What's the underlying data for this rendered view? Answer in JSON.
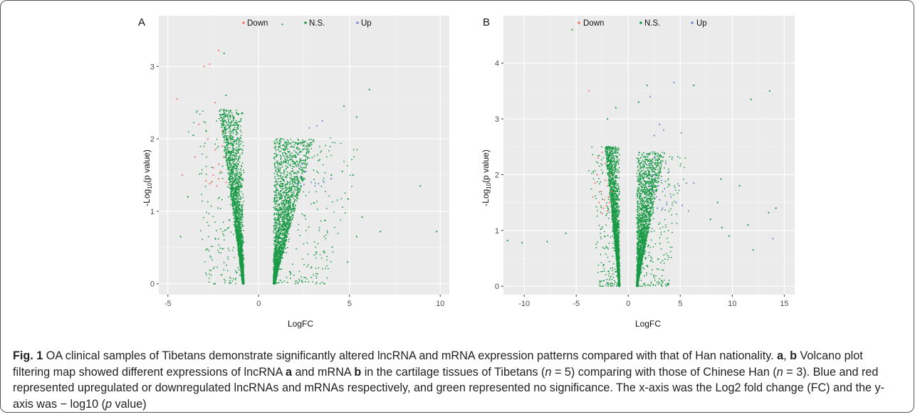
{
  "figure": {
    "caption": {
      "fig_label": "Fig. 1",
      "sentence1": "OA clinical samples of Tibetans demonstrate significantly altered lncRNA and mRNA expression patterns compared with that of Han nationality.",
      "ref_a": "a",
      "ref_sep": ",",
      "ref_b": "b",
      "part1": "Volcano plot filtering map showed different expressions of lncRNA",
      "part2": "and mRNA",
      "part3": "in the cartilage tissues of Tibetans (",
      "n1": "n",
      "part4": "= 5) comparing with those of Chinese Han (",
      "n2": "n",
      "part5": "= 3). Blue and red represented upregulated or downregulated lncRNAs and mRNAs respectively, and green represented no significance. The x-axis was the Log2 fold change (FC) and the y-axis was − log10 (",
      "p": "p",
      "part6": "value)"
    }
  },
  "chart_data": [
    {
      "panel": "A",
      "type": "scatter",
      "xlabel": "LogFC",
      "ylabel_main": "-Log",
      "ylabel_sub": "10",
      "ylabel_rest": "(p value)",
      "xlim": [
        -5.5,
        10.5
      ],
      "ylim": [
        -0.15,
        3.7
      ],
      "xticks": [
        -5,
        0,
        5,
        10
      ],
      "yticks": [
        0,
        1,
        2,
        3
      ],
      "grid": true,
      "legend_position": "top-center",
      "colors": {
        "Down": "#f8766d",
        "N.S.": "#1a9a46",
        "Up": "#7b8bd0"
      },
      "legend": [
        "Down",
        "N.S.",
        "Up"
      ],
      "series": [
        {
          "name": "Down",
          "points": [
            [
              -4.5,
              2.55
            ],
            [
              -3,
              3.0
            ],
            [
              -2.7,
              3.03
            ],
            [
              -2.2,
              3.22
            ],
            [
              -2.4,
              2.5
            ],
            [
              -3.3,
              2.2
            ],
            [
              -4.2,
              1.5
            ],
            [
              -2.8,
              2.0
            ],
            [
              -2.5,
              1.6
            ],
            [
              -2.2,
              1.45
            ],
            [
              -2.6,
              1.4
            ],
            [
              -2.3,
              1.35
            ],
            [
              -2.7,
              1.38
            ],
            [
              -2.1,
              1.55
            ],
            [
              -1.9,
              1.75
            ],
            [
              -2.4,
              1.85
            ],
            [
              -3.5,
              1.75
            ],
            [
              -2.0,
              1.9
            ],
            [
              -2.9,
              1.42
            ],
            [
              -2.2,
              1.65
            ],
            [
              -1.8,
              1.4
            ],
            [
              -2.5,
              1.5
            ],
            [
              -2.0,
              2.1
            ]
          ]
        },
        {
          "name": "N.S.",
          "points": [
            [
              -1.9,
              3.18
            ],
            [
              -1.8,
              2.6
            ],
            [
              1.3,
              3.58
            ],
            [
              4.7,
              2.45
            ],
            [
              5.4,
              2.3
            ],
            [
              6.1,
              2.68
            ],
            [
              -3.6,
              2.05
            ],
            [
              -3.9,
              1.2
            ],
            [
              -4.3,
              0.65
            ],
            [
              1.2,
              2.0
            ],
            [
              1.5,
              1.95
            ],
            [
              3.3,
              1.7
            ],
            [
              4.6,
              1.55
            ],
            [
              5.2,
              1.5
            ],
            [
              6.7,
              0.72
            ],
            [
              5.7,
              0.92
            ],
            [
              4.0,
              1.5
            ],
            [
              8.9,
              1.35
            ],
            [
              9.8,
              0.72
            ],
            [
              4.9,
              0.3
            ],
            [
              2.0,
              1.4
            ],
            [
              5.4,
              0.65
            ]
          ]
        },
        {
          "name": "Up",
          "points": [
            [
              2.2,
              1.78
            ],
            [
              2.4,
              1.65
            ],
            [
              2.6,
              1.55
            ],
            [
              2.3,
              1.48
            ],
            [
              2.9,
              1.4
            ],
            [
              3.1,
              1.35
            ],
            [
              3.3,
              1.38
            ],
            [
              2.5,
              1.37
            ],
            [
              3.6,
              1.4
            ],
            [
              3.5,
              2.25
            ],
            [
              3.2,
              2.18
            ],
            [
              2.8,
              2.15
            ],
            [
              2.2,
              1.62
            ],
            [
              4.0,
              1.45
            ],
            [
              2.1,
              1.38
            ]
          ]
        }
      ],
      "ns_cloud": [
        {
          "side": "left",
          "x_edge": -0.8,
          "y_max": 2.4
        },
        {
          "side": "right",
          "x_edge": 0.8,
          "y_max": 2.0
        }
      ]
    },
    {
      "panel": "B",
      "type": "scatter",
      "xlabel": "LogFC",
      "ylabel_main": "-Log",
      "ylabel_sub": "10",
      "ylabel_rest": "(p value)",
      "xlim": [
        -12,
        16
      ],
      "ylim": [
        -0.15,
        4.85
      ],
      "xticks": [
        -10,
        -5,
        0,
        5,
        10,
        15
      ],
      "yticks": [
        0,
        1,
        2,
        3,
        4
      ],
      "grid": true,
      "legend_position": "top-center",
      "colors": {
        "Down": "#f8766d",
        "N.S.": "#1a9a46",
        "Up": "#7b8bd0"
      },
      "legend": [
        "Down",
        "N.S.",
        "Up"
      ],
      "series": [
        {
          "name": "Down",
          "points": [
            [
              -3.8,
              3.5
            ],
            [
              -2.5,
              2.4
            ],
            [
              -2.2,
              2.2
            ],
            [
              -3.0,
              2.0
            ],
            [
              -2.0,
              1.8
            ],
            [
              -2.6,
              1.7
            ],
            [
              -1.9,
              1.6
            ],
            [
              -2.3,
              1.55
            ],
            [
              -2.8,
              1.5
            ],
            [
              -1.8,
              1.5
            ],
            [
              -2.1,
              1.45
            ],
            [
              -2.4,
              1.4
            ],
            [
              -3.2,
              1.85
            ],
            [
              -1.7,
              2.0
            ],
            [
              -2.9,
              2.3
            ],
            [
              -2.0,
              1.35
            ],
            [
              -2.5,
              1.3
            ],
            [
              -1.6,
              1.7
            ],
            [
              -3.4,
              1.6
            ],
            [
              -2.2,
              1.9
            ]
          ]
        },
        {
          "name": "N.S.",
          "points": [
            [
              -5.4,
              4.6
            ],
            [
              -1.2,
              3.2
            ],
            [
              -2.0,
              3.0
            ],
            [
              1.0,
              3.3
            ],
            [
              1.8,
              3.6
            ],
            [
              6.3,
              3.6
            ],
            [
              13.6,
              3.5
            ],
            [
              11.8,
              3.35
            ],
            [
              -11.6,
              0.82
            ],
            [
              -10.2,
              0.78
            ],
            [
              -7.8,
              0.8
            ],
            [
              -6.0,
              0.95
            ],
            [
              8.9,
              1.92
            ],
            [
              9.7,
              0.9
            ],
            [
              10.7,
              1.8
            ],
            [
              13.5,
              1.32
            ],
            [
              14.2,
              1.4
            ],
            [
              12.0,
              0.65
            ],
            [
              8.6,
              1.5
            ],
            [
              7.9,
              1.2
            ],
            [
              9.0,
              1.05
            ],
            [
              11.5,
              1.1
            ]
          ]
        },
        {
          "name": "Up",
          "points": [
            [
              4.4,
              3.65
            ],
            [
              2.1,
              3.4
            ],
            [
              3.0,
              2.9
            ],
            [
              3.4,
              2.8
            ],
            [
              2.5,
              2.7
            ],
            [
              5.1,
              2.75
            ],
            [
              2.0,
              2.2
            ],
            [
              2.3,
              2.0
            ],
            [
              2.6,
              1.95
            ],
            [
              2.9,
              1.8
            ],
            [
              3.2,
              1.9
            ],
            [
              3.5,
              1.75
            ],
            [
              2.4,
              1.7
            ],
            [
              2.7,
              1.6
            ],
            [
              3.0,
              1.55
            ],
            [
              3.7,
              1.5
            ],
            [
              4.1,
              1.6
            ],
            [
              4.6,
              1.5
            ],
            [
              2.2,
              1.5
            ],
            [
              2.8,
              1.4
            ],
            [
              3.3,
              1.4
            ],
            [
              5.2,
              1.45
            ],
            [
              5.8,
              1.35
            ],
            [
              2.5,
              2.3
            ],
            [
              3.9,
              2.05
            ],
            [
              4.9,
              1.8
            ],
            [
              6.3,
              1.85
            ],
            [
              13.9,
              0.85
            ],
            [
              2.1,
              1.8
            ],
            [
              3.6,
              2.2
            ]
          ]
        }
      ],
      "ns_cloud": [
        {
          "side": "left",
          "x_edge": -0.8,
          "y_max": 2.5
        },
        {
          "side": "right",
          "x_edge": 0.8,
          "y_max": 2.4
        }
      ]
    }
  ]
}
